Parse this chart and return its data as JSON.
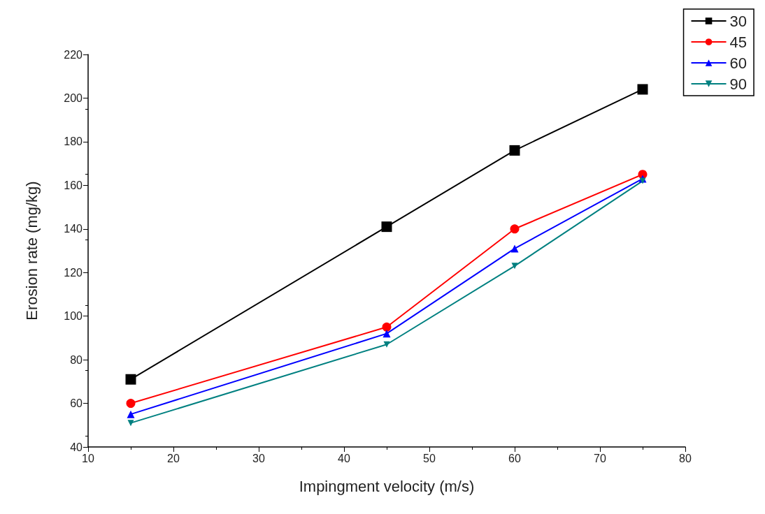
{
  "chart_data": {
    "type": "line",
    "xlabel": "Impingment velocity (m/s)",
    "ylabel": "Erosion rate (mg/kg)",
    "x": [
      15,
      45,
      60,
      75
    ],
    "xlim": [
      10,
      80
    ],
    "xticks": [
      10,
      20,
      30,
      40,
      50,
      60,
      70,
      80
    ],
    "ylim": [
      40,
      220
    ],
    "yticks": [
      40,
      60,
      80,
      100,
      120,
      140,
      160,
      180,
      200,
      220
    ],
    "grid": false,
    "legend": "top right",
    "series": [
      {
        "name": "30",
        "color": "#000000",
        "marker": "square",
        "values": [
          71,
          141,
          176,
          204
        ]
      },
      {
        "name": "45",
        "color": "#ff0000",
        "marker": "circle",
        "values": [
          60,
          95,
          140,
          165
        ]
      },
      {
        "name": "60",
        "color": "#0000ff",
        "marker": "triangle",
        "values": [
          55,
          92,
          131,
          163
        ]
      },
      {
        "name": "90",
        "color": "#008080",
        "marker": "triangle-down",
        "values": [
          51,
          87,
          123,
          162
        ]
      }
    ]
  }
}
